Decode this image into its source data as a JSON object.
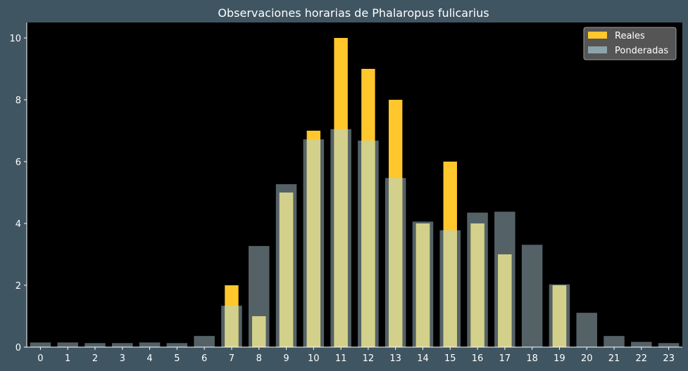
{
  "chart_data": {
    "type": "bar",
    "title": "Observaciones horarias de Phalaropus fulicarius",
    "xlabel": "",
    "ylabel": "",
    "categories": [
      "0",
      "1",
      "2",
      "3",
      "4",
      "5",
      "6",
      "7",
      "8",
      "9",
      "10",
      "11",
      "12",
      "13",
      "14",
      "15",
      "16",
      "17",
      "18",
      "19",
      "20",
      "21",
      "22",
      "23"
    ],
    "ylim": [
      0,
      10.5
    ],
    "yticks": [
      0,
      2,
      4,
      6,
      8,
      10
    ],
    "grid": false,
    "legend_position": "top-right",
    "series": [
      {
        "name": "Reales",
        "color": "#ffc72c",
        "values": [
          0,
          0,
          0,
          0,
          0,
          0,
          0,
          2,
          1,
          5,
          7,
          10,
          9,
          8,
          4,
          6,
          4,
          3,
          0,
          2,
          0,
          0,
          0,
          0
        ]
      },
      {
        "name": "Ponderadas",
        "color": "#8ca3ab",
        "values": [
          0.15,
          0.15,
          0.13,
          0.13,
          0.15,
          0.13,
          0.36,
          1.34,
          3.27,
          5.27,
          6.72,
          7.05,
          6.68,
          5.47,
          4.06,
          3.78,
          4.35,
          4.38,
          3.31,
          2.03,
          1.11,
          0.36,
          0.17,
          0.13
        ]
      }
    ]
  },
  "colors": {
    "background": "#3f5562",
    "plot_background": "#000000",
    "text": "#ffffff"
  }
}
